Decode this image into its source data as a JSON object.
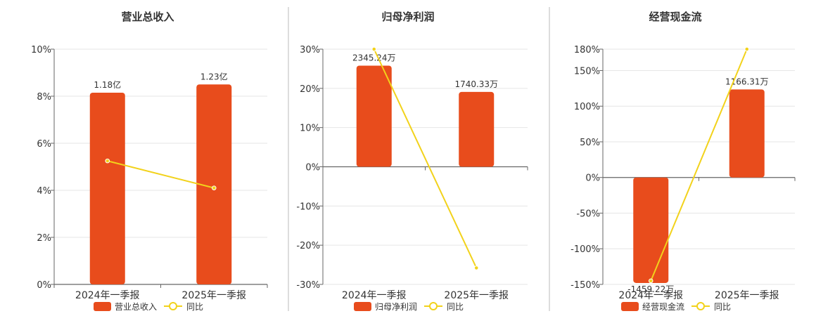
{
  "colors": {
    "bar": "#e84c1c",
    "line": "#f2d21b",
    "grid": "#e6e6e6",
    "axis": "#666666",
    "separator": "#bbbbbb"
  },
  "chart_data": [
    {
      "type": "bar",
      "title": "营业总收入",
      "categories": [
        "2024年一季报",
        "2025年一季报"
      ],
      "ylim": [
        0,
        10
      ],
      "yticks": [
        0,
        2,
        4,
        6,
        8,
        10
      ],
      "ytick_labels": [
        "0%",
        "2%",
        "4%",
        "6%",
        "8%",
        "10%"
      ],
      "series": [
        {
          "name": "营业总收入",
          "kind": "bar",
          "values": [
            8.15,
            8.5
          ],
          "labels": [
            "1.18亿",
            "1.23亿"
          ]
        },
        {
          "name": "同比",
          "kind": "line",
          "values": [
            5.25,
            4.1
          ]
        }
      ],
      "legend_position": "bottom"
    },
    {
      "type": "bar",
      "title": "归母净利润",
      "categories": [
        "2024年一季报",
        "2025年一季报"
      ],
      "ylim": [
        -30,
        30
      ],
      "yticks": [
        -30,
        -20,
        -10,
        0,
        10,
        20,
        30
      ],
      "ytick_labels": [
        "-30%",
        "-20%",
        "-10%",
        "0%",
        "10%",
        "20%",
        "30%"
      ],
      "series": [
        {
          "name": "归母净利润",
          "kind": "bar",
          "values": [
            25.8,
            19.1
          ],
          "labels": [
            "2345.24万",
            "1740.33万"
          ]
        },
        {
          "name": "同比",
          "kind": "line",
          "values": [
            30,
            -25.8
          ]
        }
      ],
      "legend_position": "bottom"
    },
    {
      "type": "bar",
      "title": "经营现金流",
      "categories": [
        "2024年一季报",
        "2025年一季报"
      ],
      "ylim": [
        -150,
        180
      ],
      "yticks": [
        -150,
        -100,
        -50,
        0,
        50,
        100,
        150,
        180
      ],
      "ytick_labels": [
        "-150%",
        "-100%",
        "-50%",
        "0%",
        "50%",
        "100%",
        "150%",
        "180%"
      ],
      "series": [
        {
          "name": "经营现金流",
          "kind": "bar",
          "values": [
            -148,
            123.5
          ],
          "labels": [
            "-1459.22万",
            "1166.31万"
          ]
        },
        {
          "name": "同比",
          "kind": "line",
          "values": [
            -145,
            180
          ]
        }
      ],
      "legend_position": "bottom"
    }
  ]
}
